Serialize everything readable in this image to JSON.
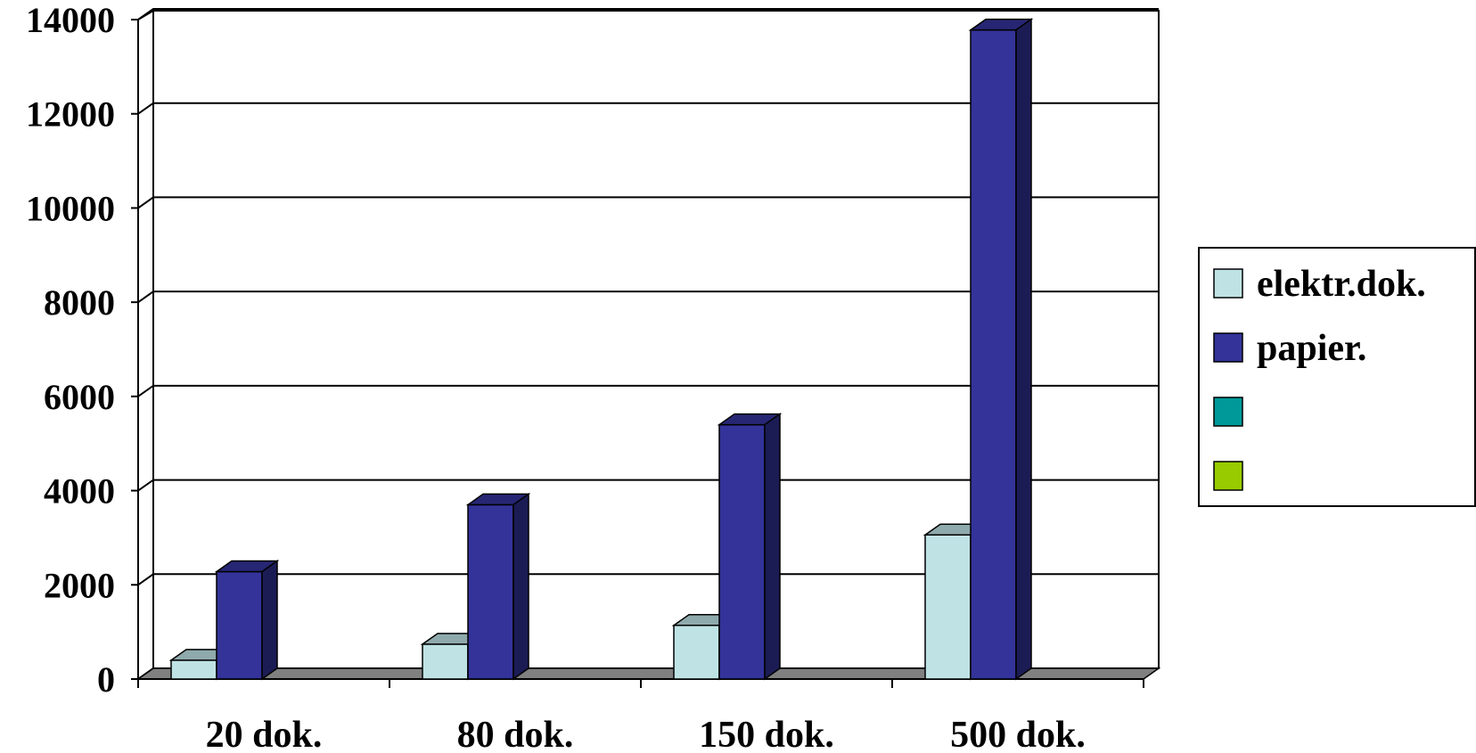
{
  "chart_data": {
    "type": "bar",
    "categories": [
      "20 dok.",
      "80 dok.",
      "150 dok.",
      "500 dok."
    ],
    "series": [
      {
        "name": "elektr.dok.",
        "values": [
          400,
          740,
          1140,
          3060
        ],
        "color": "#BFE3E5"
      },
      {
        "name": "papier.",
        "values": [
          2280,
          3700,
          5400,
          13780
        ],
        "color": "#33339A"
      },
      {
        "name": "",
        "values": [
          0,
          0,
          0,
          0
        ],
        "color": "#009999"
      },
      {
        "name": "",
        "values": [
          0,
          0,
          0,
          0
        ],
        "color": "#99CC00"
      }
    ],
    "ylim": [
      0,
      14000
    ],
    "yticks": [
      "0",
      "2000",
      "4000",
      "6000",
      "8000",
      "10000",
      "12000",
      "14000"
    ],
    "grid": true,
    "legend": "right",
    "title": "",
    "xlabel": "",
    "ylabel": ""
  }
}
